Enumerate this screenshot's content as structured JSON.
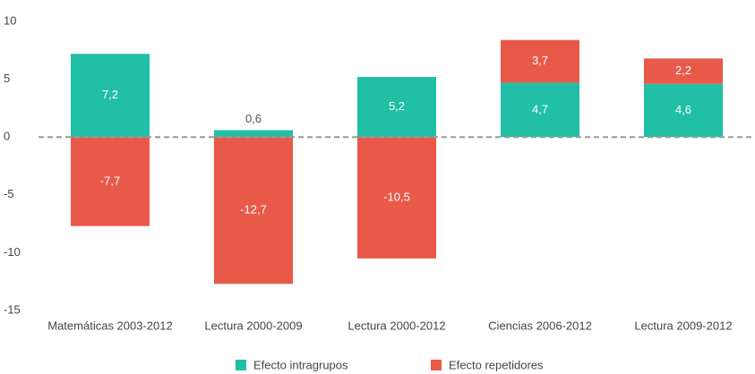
{
  "chart_data": {
    "type": "stacked_bar",
    "categories": [
      "Matemáticas 2003-2012",
      "Lectura 2000-2009",
      "Lectura 2000-2012",
      "Ciencias 2006-2012",
      "Lectura 2009-2012"
    ],
    "series": [
      {
        "name": "Efecto intragrupos",
        "color": "#20bfa6",
        "values": [
          7.2,
          0.6,
          5.2,
          4.7,
          4.6
        ],
        "value_labels": [
          "7,2",
          "0,6",
          "5,2",
          "4,7",
          "4,6"
        ]
      },
      {
        "name": "Efecto repetidores",
        "color": "#e8594a",
        "values": [
          -7.7,
          -12.7,
          -10.5,
          3.7,
          2.2
        ],
        "value_labels": [
          "-7,7",
          "-12,7",
          "-10,5",
          "3,7",
          "2,2"
        ]
      }
    ],
    "ylim": [
      -15,
      10
    ],
    "yticks": [
      -15,
      -10,
      -5,
      0,
      5,
      10
    ],
    "grid": false,
    "legend": "bottom"
  }
}
